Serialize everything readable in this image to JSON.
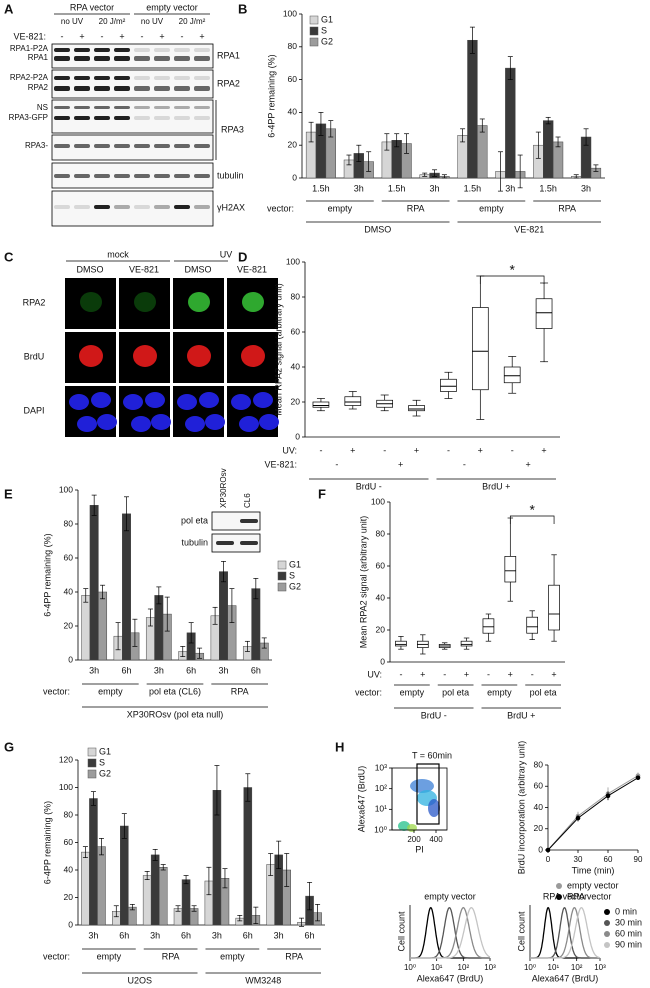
{
  "panel_labels": [
    "A",
    "B",
    "C",
    "D",
    "E",
    "F",
    "G",
    "H"
  ],
  "panel_a": {
    "headers": [
      "RPA vector",
      "empty vector"
    ],
    "conditions": [
      "no UV",
      "20 J/m²",
      "no UV",
      "20 J/m²"
    ],
    "treatment_label": "VE-821:",
    "treatment": [
      "-",
      "+",
      "-",
      "+",
      "-",
      "+",
      "-",
      "+"
    ],
    "band_labels": [
      "RPA1-P2A",
      "RPA1",
      "RPA2-P2A",
      "RPA2",
      "NS",
      "RPA3-GFP",
      "RPA3-"
    ],
    "blots": [
      "RPA1",
      "RPA2",
      "RPA3",
      "tubulin",
      "γH2AX"
    ]
  },
  "panel_c": {
    "conditions": [
      "mock",
      "UV"
    ],
    "treatments": [
      "DMSO",
      "VE-821",
      "DMSO",
      "VE-821"
    ],
    "stains": [
      "RPA2",
      "BrdU",
      "DAPI"
    ]
  },
  "chart_data": [
    {
      "type": "bar",
      "ylabel": "6-4PP remaining (%)",
      "ylim": [
        0,
        100
      ],
      "yticks": [
        0,
        20,
        40,
        60,
        80,
        100
      ],
      "categories": [
        "1.5h",
        "3h",
        "1.5h",
        "3h",
        "1.5h",
        "3h",
        "1.5h",
        "3h"
      ],
      "series": [
        {
          "name": "G1",
          "color": "#d6d6d6",
          "values": [
            28,
            11,
            22,
            2,
            26,
            4,
            20,
            1
          ],
          "errors": [
            6,
            3,
            5,
            1,
            4,
            12,
            8,
            1
          ]
        },
        {
          "name": "S",
          "color": "#3a3a3a",
          "values": [
            33,
            15,
            23,
            3,
            84,
            67,
            35,
            25
          ],
          "errors": [
            7,
            5,
            4,
            2,
            8,
            7,
            2,
            5
          ]
        },
        {
          "name": "G2",
          "color": "#9c9c9c",
          "values": [
            30,
            10,
            21,
            1,
            32,
            4,
            22,
            6
          ],
          "errors": [
            5,
            6,
            6,
            1,
            4,
            10,
            3,
            2
          ]
        }
      ],
      "x_groups": [
        {
          "label": "vector:",
          "groups": [
            "empty",
            "RPA",
            "empty",
            "RPA"
          ]
        },
        {
          "groups": [
            "DMSO",
            "VE-821"
          ]
        }
      ]
    },
    {
      "type": "box",
      "ylabel": "Mean RPA2 signal (arbitrary unit)",
      "ylim": [
        0,
        100
      ],
      "yticks": [
        0,
        20,
        40,
        60,
        80,
        100
      ],
      "boxes": [
        {
          "min": 15,
          "q1": 17,
          "median": 18,
          "q3": 20,
          "max": 22
        },
        {
          "min": 16,
          "q1": 18,
          "median": 20,
          "q3": 23,
          "max": 26
        },
        {
          "min": 15,
          "q1": 17,
          "median": 19,
          "q3": 21,
          "max": 24
        },
        {
          "min": 12,
          "q1": 15,
          "median": 16,
          "q3": 18,
          "max": 21
        },
        {
          "min": 22,
          "q1": 26,
          "median": 29,
          "q3": 33,
          "max": 37
        },
        {
          "min": 10,
          "q1": 27,
          "median": 49,
          "q3": 74,
          "max": 92
        },
        {
          "min": 25,
          "q1": 31,
          "median": 35,
          "q3": 40,
          "max": 46
        },
        {
          "min": 43,
          "q1": 62,
          "median": 71,
          "q3": 79,
          "max": 88
        }
      ],
      "x_rows": [
        {
          "label": "UV:",
          "values": [
            "-",
            "+",
            "-",
            "+",
            "-",
            "+",
            "-",
            "+"
          ]
        },
        {
          "label": "VE-821:",
          "values": [
            "-",
            "+",
            "-",
            "+"
          ]
        }
      ],
      "x_groups": [
        {
          "groups": [
            "BrdU -",
            "BrdU +"
          ]
        }
      ],
      "annotation": "*"
    },
    {
      "type": "bar",
      "ylabel": "6-4PP remaining (%)",
      "ylim": [
        0,
        100
      ],
      "yticks": [
        0,
        20,
        40,
        60,
        80,
        100
      ],
      "categories": [
        "3h",
        "6h",
        "3h",
        "6h",
        "3h",
        "6h"
      ],
      "series": [
        {
          "name": "G1",
          "color": "#d6d6d6",
          "values": [
            38,
            14,
            25,
            5,
            26,
            8
          ],
          "errors": [
            4,
            8,
            5,
            3,
            5,
            3
          ]
        },
        {
          "name": "S",
          "color": "#3a3a3a",
          "values": [
            91,
            86,
            38,
            16,
            52,
            42
          ],
          "errors": [
            6,
            10,
            5,
            6,
            6,
            6
          ]
        },
        {
          "name": "G2",
          "color": "#9c9c9c",
          "values": [
            40,
            16,
            27,
            4,
            32,
            10
          ],
          "errors": [
            4,
            8,
            10,
            3,
            10,
            3
          ]
        }
      ],
      "x_groups": [
        {
          "label": "vector:",
          "groups": [
            "empty",
            "pol eta (CL6)",
            "RPA"
          ]
        },
        {
          "groups": [
            "XP30ROsv (pol eta null)"
          ]
        }
      ],
      "inset": {
        "lanes": [
          "XP30ROsv",
          "CL6"
        ],
        "blots": [
          "pol eta",
          "tubulin"
        ]
      }
    },
    {
      "type": "box",
      "ylabel": "Mean RPA2 signal (arbitrary unit)",
      "ylim": [
        0,
        100
      ],
      "yticks": [
        0,
        20,
        40,
        60,
        80,
        100
      ],
      "boxes": [
        {
          "min": 8,
          "q1": 10,
          "median": 11,
          "q3": 13,
          "max": 16
        },
        {
          "min": 5,
          "q1": 9,
          "median": 11,
          "q3": 13,
          "max": 17
        },
        {
          "min": 8,
          "q1": 9,
          "median": 10,
          "q3": 11,
          "max": 12
        },
        {
          "min": 8,
          "q1": 10,
          "median": 11,
          "q3": 13,
          "max": 15
        },
        {
          "min": 13,
          "q1": 18,
          "median": 22,
          "q3": 27,
          "max": 30
        },
        {
          "min": 38,
          "q1": 50,
          "median": 57,
          "q3": 66,
          "max": 90
        },
        {
          "min": 14,
          "q1": 18,
          "median": 22,
          "q3": 28,
          "max": 32
        },
        {
          "min": 13,
          "q1": 20,
          "median": 30,
          "q3": 48,
          "max": 67
        }
      ],
      "x_rows": [
        {
          "label": "UV:",
          "values": [
            "-",
            "+",
            "-",
            "+",
            "-",
            "+",
            "-",
            "+"
          ]
        }
      ],
      "x_groups": [
        {
          "label": "vector:",
          "groups": [
            "empty",
            "pol eta",
            "empty",
            "pol eta"
          ]
        },
        {
          "groups": [
            "BrdU -",
            "BrdU +"
          ]
        }
      ],
      "annotation": "*"
    },
    {
      "type": "bar",
      "ylabel": "6-4PP remaining (%)",
      "ylim": [
        0,
        120
      ],
      "yticks": [
        0,
        20,
        40,
        60,
        80,
        100,
        120
      ],
      "categories": [
        "3h",
        "6h",
        "3h",
        "6h",
        "3h",
        "6h",
        "3h",
        "6h"
      ],
      "series": [
        {
          "name": "G1",
          "color": "#d6d6d6",
          "values": [
            53,
            10,
            36,
            12,
            32,
            5,
            44,
            2
          ],
          "errors": [
            4,
            4,
            3,
            2,
            10,
            2,
            8,
            3
          ]
        },
        {
          "name": "S",
          "color": "#3a3a3a",
          "values": [
            92,
            72,
            51,
            33,
            98,
            100,
            51,
            21
          ],
          "errors": [
            5,
            9,
            4,
            3,
            18,
            10,
            10,
            10
          ]
        },
        {
          "name": "G2",
          "color": "#9c9c9c",
          "values": [
            57,
            13,
            42,
            12,
            34,
            7,
            40,
            9
          ],
          "errors": [
            6,
            2,
            2,
            2,
            7,
            6,
            12,
            6
          ]
        }
      ],
      "x_groups": [
        {
          "label": "vector:",
          "groups": [
            "empty",
            "RPA",
            "empty",
            "RPA"
          ]
        },
        {
          "groups": [
            "U2OS",
            "WM3248"
          ]
        }
      ]
    },
    {
      "type": "flow",
      "title": "T = 60min",
      "xlabel": "PI",
      "ylabel": "Alexa647 (BrdU)",
      "xlim": [
        0,
        500
      ],
      "xticks": [
        200,
        400
      ],
      "ylim": [
        1,
        1000
      ],
      "ylog": true,
      "yticks": [
        {
          "value": 1,
          "label": "10⁰"
        },
        {
          "value": 10,
          "label": "10¹"
        },
        {
          "value": 100,
          "label": "10²"
        },
        {
          "value": 1000,
          "label": "10³"
        }
      ]
    },
    {
      "type": "line",
      "xlabel": "Time (min)",
      "ylabel": "BrdU incorporation (arbitrary unit)",
      "x": [
        0,
        30,
        60,
        90
      ],
      "xlim": [
        0,
        90
      ],
      "xticks": [
        0,
        30,
        60,
        90
      ],
      "ylim": [
        0,
        80
      ],
      "yticks": [
        0,
        20,
        40,
        60,
        80
      ],
      "series": [
        {
          "name": "empty vector",
          "color": "#9a9a9a",
          "values": [
            0,
            32,
            53,
            70
          ],
          "errors": [
            1,
            4,
            6,
            3
          ]
        },
        {
          "name": "RPA vector",
          "color": "#000000",
          "values": [
            0,
            30,
            51,
            68
          ],
          "errors": [
            1,
            3,
            4,
            2
          ]
        }
      ]
    },
    {
      "type": "histogram",
      "title": "empty vector",
      "xlabel": "Alexa647 (BrdU)",
      "ylabel": "Cell count",
      "xlog": true,
      "xlim": [
        1,
        1000
      ],
      "xticks": [
        {
          "value": 1,
          "label": "10⁰"
        },
        {
          "value": 10,
          "label": "10¹"
        },
        {
          "value": 100,
          "label": "10²"
        },
        {
          "value": 1000,
          "label": "10³"
        }
      ],
      "series": [
        {
          "color": "#000000",
          "mode": 6
        },
        {
          "color": "#555555",
          "mode": 30
        },
        {
          "color": "#8a8a8a",
          "mode": 100
        },
        {
          "color": "#c4c4c4",
          "mode": 200
        }
      ]
    },
    {
      "type": "histogram",
      "title": "RPA vector",
      "xlabel": "Alexa647 (BrdU)",
      "ylabel": "Cell count",
      "xlog": true,
      "xlim": [
        1,
        1000
      ],
      "xticks": [
        {
          "value": 1,
          "label": "10⁰"
        },
        {
          "value": 10,
          "label": "10¹"
        },
        {
          "value": 100,
          "label": "10²"
        },
        {
          "value": 1000,
          "label": "10³"
        }
      ],
      "series": [
        {
          "name": "0 min",
          "color": "#000000",
          "mode": 6
        },
        {
          "name": "30 min",
          "color": "#555555",
          "mode": 30
        },
        {
          "name": "60 min",
          "color": "#8a8a8a",
          "mode": 80
        },
        {
          "name": "90 min",
          "color": "#c4c4c4",
          "mode": 160
        }
      ]
    }
  ]
}
